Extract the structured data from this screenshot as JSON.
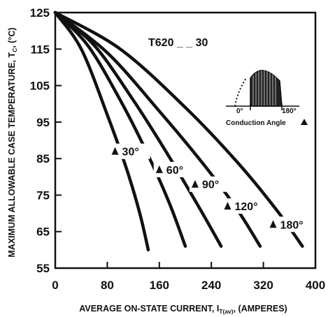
{
  "chart_data": {
    "type": "line",
    "part_number": "T620 _ _ 30",
    "xlabel": "AVERAGE ON-STATE CURRENT, I",
    "xlabel_sub": "T(av)",
    "xlabel_suffix": ", (AMPERES)",
    "ylabel": "MAXIMUM ALLOWABLE CASE TEMPERATURE, T",
    "ylabel_sub": "C",
    "ylabel_suffix": ", (°C)",
    "xlim": [
      0,
      400
    ],
    "ylim": [
      55,
      125
    ],
    "xticks": [
      "0",
      "80",
      "160",
      "240",
      "320",
      "400"
    ],
    "yticks": [
      "55",
      "65",
      "75",
      "85",
      "95",
      "105",
      "115",
      "125"
    ],
    "grid": false,
    "series": [
      {
        "name": "30°",
        "x": [
          0,
          40,
          80,
          110,
          130,
          143
        ],
        "y": [
          125,
          115,
          97,
          82,
          70,
          60
        ]
      },
      {
        "name": "60°",
        "x": [
          0,
          50,
          100,
          140,
          175,
          200
        ],
        "y": [
          125,
          116,
          101,
          87,
          73,
          61
        ]
      },
      {
        "name": "90°",
        "x": [
          0,
          60,
          120,
          170,
          220,
          255
        ],
        "y": [
          125,
          116,
          101,
          87,
          72,
          61
        ]
      },
      {
        "name": "120°",
        "x": [
          0,
          80,
          160,
          230,
          280,
          315
        ],
        "y": [
          125,
          114,
          98,
          83,
          71,
          61
        ]
      },
      {
        "name": "180°",
        "x": [
          0,
          100,
          200,
          280,
          340,
          380
        ],
        "y": [
          125,
          115,
          99,
          84,
          71,
          61
        ]
      }
    ],
    "series_labels": [
      {
        "text": "30°",
        "x": 92,
        "y": 87
      },
      {
        "text": "60°",
        "x": 160,
        "y": 82
      },
      {
        "text": "90°",
        "x": 215,
        "y": 78
      },
      {
        "text": "120°",
        "x": 265,
        "y": 72
      },
      {
        "text": "180°",
        "x": 335,
        "y": 67
      }
    ],
    "inset": {
      "zero_label": "0°",
      "end_label": "180°",
      "caption": "Conduction Angle"
    }
  }
}
